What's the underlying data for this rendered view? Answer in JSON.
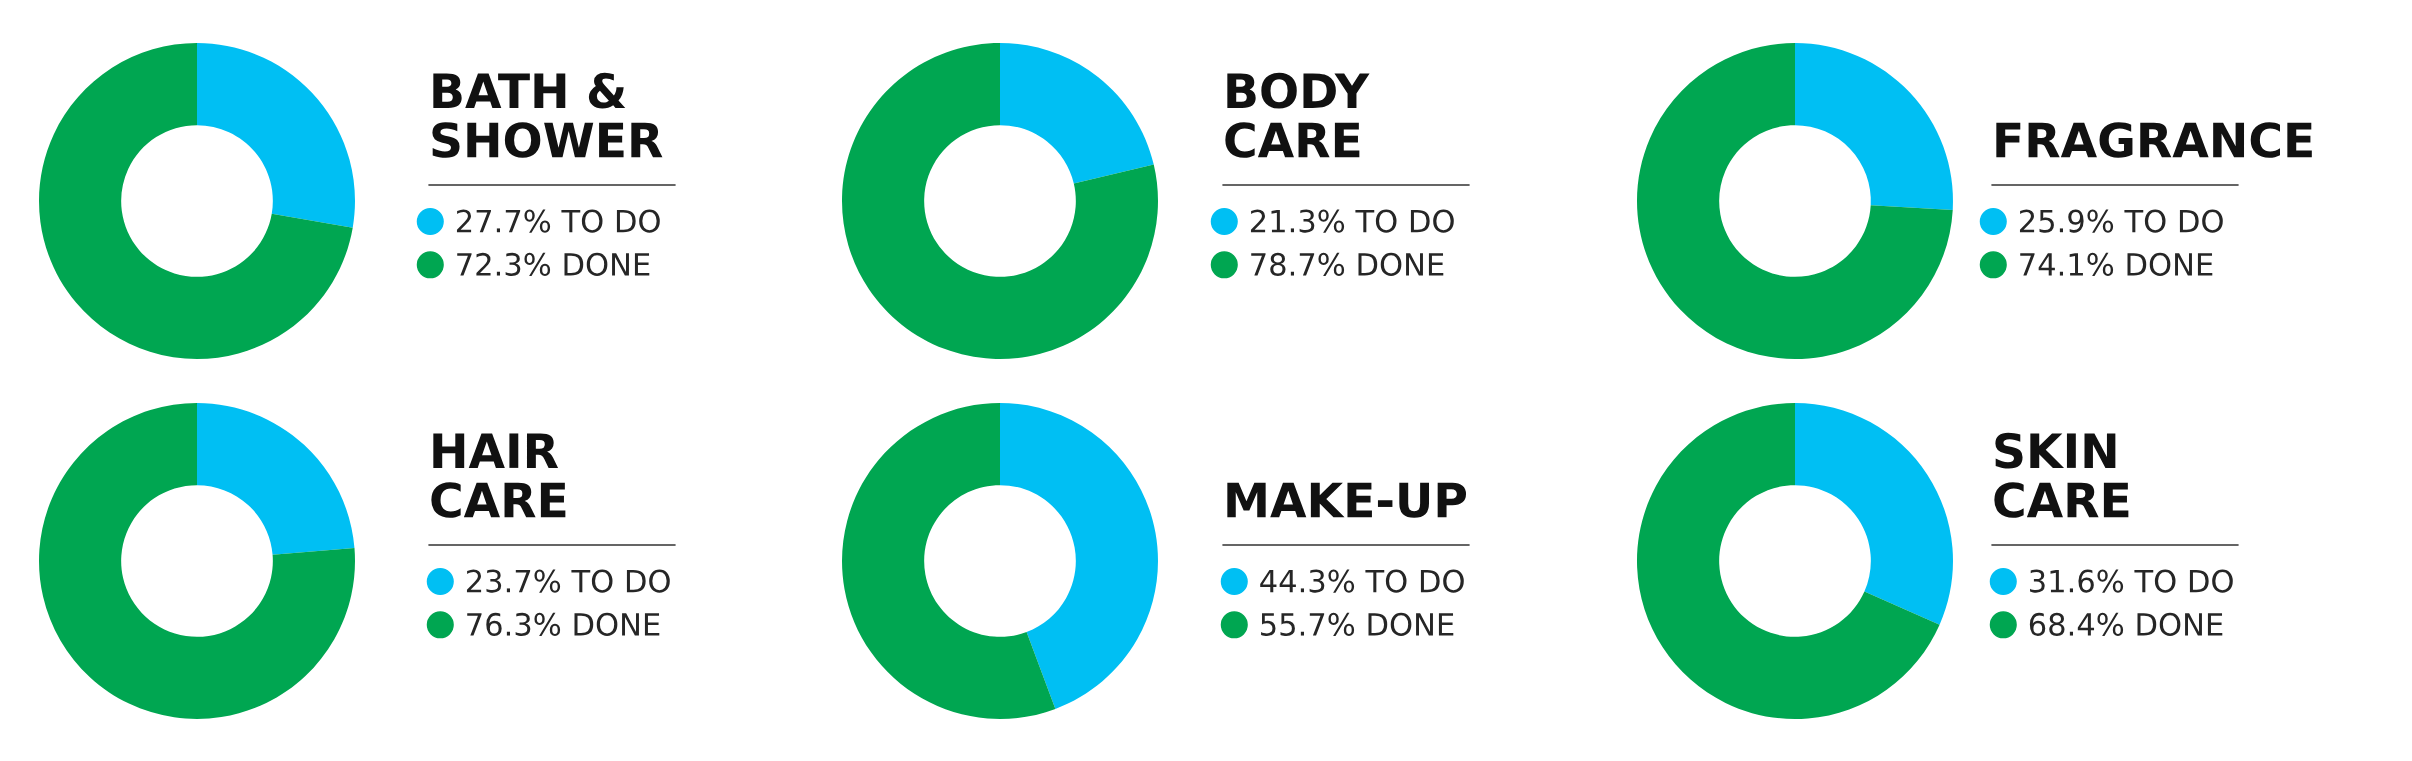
{
  "chart_data": [
    {
      "type": "donut",
      "title": "BATH &\nSHOWER",
      "categories": [
        "TO DO",
        "DONE"
      ],
      "values": [
        27.7,
        72.3
      ],
      "value_labels": [
        "27.7%",
        "72.3%"
      ],
      "colors": [
        "#00bff3",
        "#00a651"
      ],
      "legend": "right"
    },
    {
      "type": "donut",
      "title": "BODY\nCARE",
      "categories": [
        "TO DO",
        "DONE"
      ],
      "values": [
        21.3,
        78.7
      ],
      "value_labels": [
        "21.3%",
        "78.7%"
      ],
      "colors": [
        "#00bff3",
        "#00a651"
      ],
      "legend": "right"
    },
    {
      "type": "donut",
      "title": "FRAGRANCE",
      "categories": [
        "TO DO",
        "DONE"
      ],
      "values": [
        25.9,
        74.1
      ],
      "value_labels": [
        "25.9%",
        "74.1%"
      ],
      "colors": [
        "#00bff3",
        "#00a651"
      ],
      "legend": "right"
    },
    {
      "type": "donut",
      "title": "HAIR\nCARE",
      "categories": [
        "TO DO",
        "DONE"
      ],
      "values": [
        23.7,
        76.3
      ],
      "value_labels": [
        "23.7%",
        "76.3%"
      ],
      "colors": [
        "#00bff3",
        "#00a651"
      ],
      "legend": "right"
    },
    {
      "type": "donut",
      "title": "MAKE-UP",
      "categories": [
        "TO DO",
        "DONE"
      ],
      "values": [
        44.3,
        55.7
      ],
      "value_labels": [
        "44.3%",
        "55.7%"
      ],
      "colors": [
        "#00bff3",
        "#00a651"
      ],
      "legend": "right"
    },
    {
      "type": "donut",
      "title": "SKIN\nCARE",
      "categories": [
        "TO DO",
        "DONE"
      ],
      "values": [
        31.6,
        68.4
      ],
      "value_labels": [
        "31.6%",
        "68.4%"
      ],
      "colors": [
        "#00bff3",
        "#00a651"
      ],
      "legend": "right"
    }
  ]
}
